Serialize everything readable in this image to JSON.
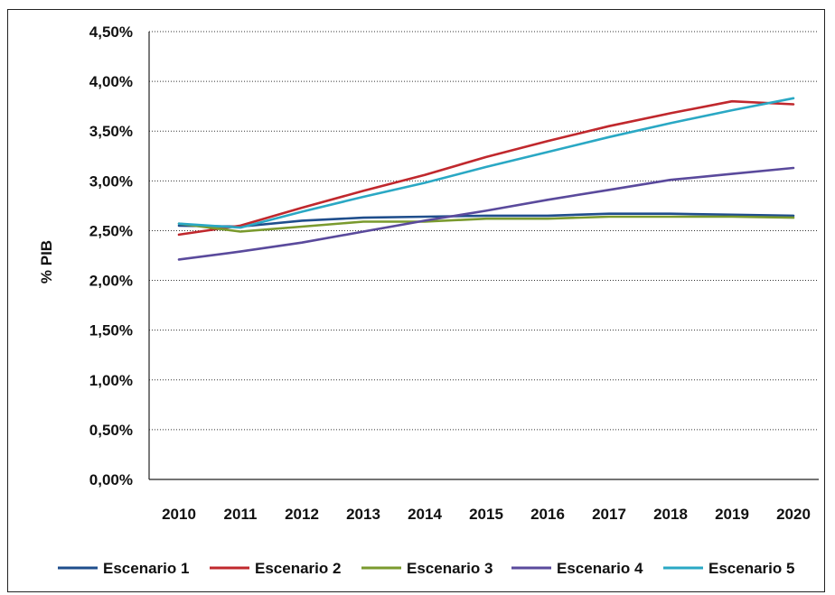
{
  "chart_data": {
    "type": "line",
    "title": "",
    "xlabel": "",
    "ylabel": "% PIB",
    "ylim": [
      0,
      4.5
    ],
    "yticks": [
      "0,00%",
      "0,50%",
      "1,00%",
      "1,50%",
      "2,00%",
      "2,50%",
      "3,00%",
      "3,50%",
      "4,00%",
      "4,50%"
    ],
    "ytick_values": [
      0,
      0.5,
      1.0,
      1.5,
      2.0,
      2.5,
      3.0,
      3.5,
      4.0,
      4.5
    ],
    "categories": [
      "2010",
      "2011",
      "2012",
      "2013",
      "2014",
      "2015",
      "2016",
      "2017",
      "2018",
      "2019",
      "2020"
    ],
    "grid": true,
    "legend": "bottom",
    "series": [
      {
        "name": "Escenario 1",
        "color": "#1f4e8c",
        "values": [
          2.55,
          2.54,
          2.6,
          2.63,
          2.64,
          2.65,
          2.65,
          2.67,
          2.67,
          2.66,
          2.65
        ]
      },
      {
        "name": "Escenario 2",
        "color": "#c0282d",
        "values": [
          2.46,
          2.55,
          2.73,
          2.9,
          3.06,
          3.24,
          3.4,
          3.55,
          3.68,
          3.8,
          3.77
        ]
      },
      {
        "name": "Escenario 3",
        "color": "#7a9a2e",
        "values": [
          2.57,
          2.49,
          2.54,
          2.59,
          2.59,
          2.62,
          2.62,
          2.64,
          2.64,
          2.64,
          2.63
        ]
      },
      {
        "name": "Escenario 4",
        "color": "#5a4a9c",
        "values": [
          2.21,
          2.29,
          2.38,
          2.49,
          2.6,
          2.7,
          2.81,
          2.91,
          3.01,
          3.07,
          3.13
        ]
      },
      {
        "name": "Escenario 5",
        "color": "#2aa8c4",
        "values": [
          2.57,
          2.53,
          2.69,
          2.84,
          2.98,
          3.14,
          3.29,
          3.44,
          3.58,
          3.71,
          3.83
        ]
      }
    ]
  }
}
